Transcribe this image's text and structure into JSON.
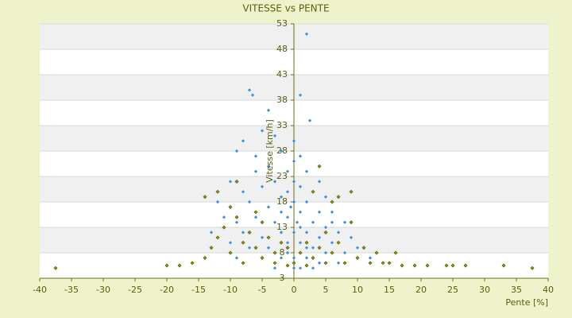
{
  "chart_data": {
    "type": "scatter",
    "title": "VITESSE vs PENTE",
    "x_label": "Pente [%]",
    "y_label": "Vitesse [km/h]",
    "xlim": [
      -40,
      40
    ],
    "xticks": [
      -40,
      -35,
      -30,
      -25,
      -20,
      -15,
      -10,
      -5,
      0,
      5,
      10,
      15,
      20,
      25,
      30,
      35,
      40
    ],
    "ylim": [
      3,
      53
    ],
    "yticks": [
      3,
      8,
      13,
      18,
      23,
      28,
      33,
      38,
      43,
      48,
      53
    ],
    "grid": true,
    "series": [
      {
        "color": "#3d8fdc",
        "x": [
          -7,
          -6.5,
          -4,
          -5,
          -8,
          -3,
          1,
          2.5,
          2,
          -9,
          -6,
          -2,
          0,
          1,
          -4,
          -1,
          2,
          4,
          -10,
          -8,
          -5,
          -3,
          0,
          1,
          3,
          5,
          -12,
          -7,
          -4,
          -2,
          0,
          2,
          4,
          6,
          8,
          -11,
          -9,
          -6,
          -3,
          -1,
          1,
          3,
          5,
          7,
          9,
          -13,
          -8,
          -5,
          -2,
          0,
          2,
          4,
          6,
          10,
          -10,
          -7,
          -4,
          -1,
          1,
          3,
          5,
          8,
          12,
          -9,
          -5,
          -2,
          0,
          2,
          4,
          7,
          -3,
          0,
          1,
          3,
          -1,
          0,
          -2,
          1,
          2,
          -1,
          6,
          -6,
          -0.5,
          0.5
        ],
        "y": [
          40,
          39,
          36,
          32,
          30,
          31,
          39,
          34,
          51,
          28,
          27,
          28,
          26,
          27,
          25,
          24,
          24,
          22,
          22,
          20,
          21,
          22,
          22,
          21,
          20,
          19,
          18,
          18,
          17,
          19,
          18,
          18,
          16,
          16,
          14,
          15,
          14,
          15,
          14,
          15,
          16,
          14,
          13,
          12,
          11,
          12,
          12,
          11,
          12,
          12,
          12,
          11,
          10,
          9,
          10,
          9,
          9,
          10,
          10,
          9,
          8,
          8,
          7,
          7,
          7,
          7,
          7,
          7,
          6,
          6,
          5,
          5,
          5,
          5,
          20,
          30,
          16,
          13,
          9,
          8,
          14,
          24,
          17,
          14
        ]
      },
      {
        "color": "#8c8f00",
        "x": [
          -37.5,
          -20,
          -18,
          -16,
          -14,
          -13,
          -12,
          -14,
          -12,
          -10,
          -9,
          -11,
          -10,
          -8,
          -8,
          -7,
          -6,
          -5,
          -5,
          -4,
          -3,
          -3,
          -2,
          -1,
          0,
          1,
          2,
          3,
          4,
          5,
          5,
          6,
          7,
          7,
          8,
          9,
          9,
          10,
          11,
          12,
          13,
          14,
          15,
          16,
          17,
          19,
          21,
          24,
          25,
          27,
          33,
          37.5,
          4,
          3,
          -6,
          -9,
          6,
          2,
          -1
        ],
        "y": [
          5,
          5.5,
          5.5,
          6,
          7,
          9,
          11,
          19,
          20,
          17,
          15,
          13,
          8,
          10,
          6,
          12,
          9,
          14,
          7,
          11,
          8,
          6,
          10,
          9,
          6,
          8,
          10,
          7,
          9,
          12,
          6,
          8,
          10,
          19,
          6,
          20,
          14,
          7,
          9,
          6,
          8,
          6,
          6,
          8,
          5.5,
          5.5,
          5.5,
          5.5,
          5.5,
          5.5,
          5.5,
          5,
          25,
          20,
          16,
          22,
          18,
          5.5,
          5.5
        ]
      }
    ]
  }
}
